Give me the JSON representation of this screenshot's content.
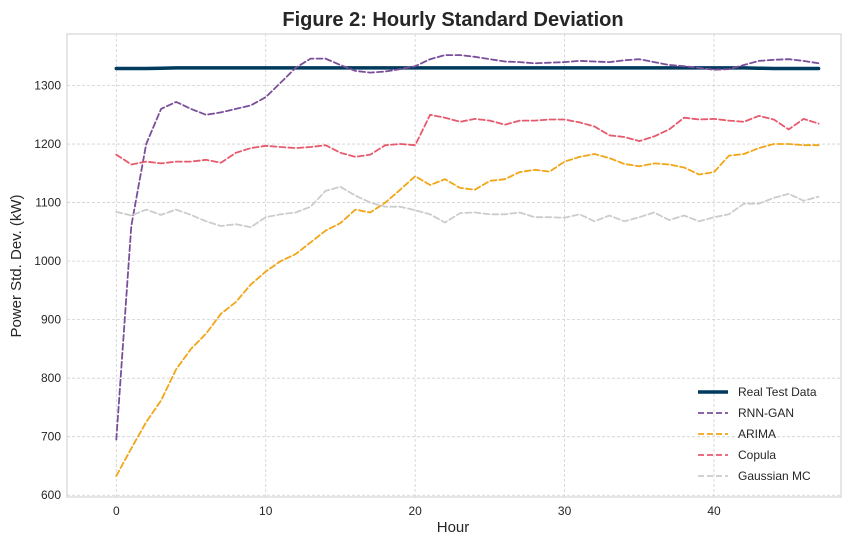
{
  "chart_data": {
    "type": "line",
    "title": "Figure 2: Hourly Standard Deviation",
    "xlabel": "Hour",
    "ylabel": "Power Std. Dev. (kW)",
    "xlim": [
      -3.3,
      48.5
    ],
    "ylim": [
      597,
      1388
    ],
    "xticks": [
      0,
      10,
      20,
      30,
      40
    ],
    "yticks": [
      600,
      700,
      800,
      900,
      1000,
      1100,
      1200,
      1300
    ],
    "grid": true,
    "legend_position": "lower-right",
    "x": [
      0,
      1,
      2,
      3,
      4,
      5,
      6,
      7,
      8,
      9,
      10,
      11,
      12,
      13,
      14,
      15,
      16,
      17,
      18,
      19,
      20,
      21,
      22,
      23,
      24,
      25,
      26,
      27,
      28,
      29,
      30,
      31,
      32,
      33,
      34,
      35,
      36,
      37,
      38,
      39,
      40,
      41,
      42,
      43,
      44,
      45,
      46,
      47
    ],
    "series": [
      {
        "name": "Real Test Data",
        "color": "#003a5c",
        "dash": "solid",
        "width": 3.5,
        "values": [
          1329,
          1329,
          1329,
          1329.5,
          1330,
          1330,
          1330,
          1330,
          1330,
          1330,
          1330,
          1330,
          1330,
          1330,
          1330,
          1330,
          1330,
          1330,
          1330,
          1330,
          1330,
          1330,
          1330,
          1330,
          1330,
          1330,
          1330,
          1330,
          1330,
          1330,
          1330,
          1330,
          1330,
          1330,
          1330,
          1330,
          1330,
          1330,
          1330,
          1330,
          1330,
          1330,
          1330,
          1329.5,
          1329,
          1329,
          1329,
          1329
        ]
      },
      {
        "name": "RNN-GAN",
        "color": "#7a4f9a",
        "dash": "dashed",
        "width": 1.8,
        "values": [
          695,
          1060,
          1200,
          1260,
          1272,
          1260,
          1250,
          1254,
          1260,
          1266,
          1280,
          1305,
          1330,
          1346,
          1346,
          1335,
          1325,
          1322,
          1324,
          1328,
          1333,
          1345,
          1352,
          1352,
          1349,
          1345,
          1341,
          1340,
          1338,
          1339,
          1340,
          1342,
          1341,
          1340,
          1343,
          1345,
          1340,
          1335,
          1333,
          1330,
          1327,
          1328,
          1335,
          1342,
          1344,
          1345,
          1342,
          1338
        ]
      },
      {
        "name": "ARIMA",
        "color": "#f2a516",
        "dash": "dashed",
        "width": 1.8,
        "values": [
          633,
          680,
          725,
          762,
          815,
          850,
          876,
          910,
          930,
          960,
          982,
          1000,
          1012,
          1032,
          1052,
          1065,
          1088,
          1083,
          1100,
          1122,
          1145,
          1130,
          1140,
          1125,
          1122,
          1137,
          1140,
          1152,
          1156,
          1153,
          1170,
          1178,
          1183,
          1176,
          1166,
          1162,
          1167,
          1165,
          1160,
          1148,
          1152,
          1180,
          1183,
          1193,
          1200,
          1200,
          1198,
          1198
        ]
      },
      {
        "name": "Copula",
        "color": "#e8596d",
        "dash": "dashed",
        "width": 1.8,
        "values": [
          1182,
          1165,
          1170,
          1167,
          1170,
          1170,
          1173,
          1168,
          1185,
          1193,
          1197,
          1195,
          1193,
          1195,
          1198,
          1185,
          1178,
          1182,
          1198,
          1200,
          1198,
          1250,
          1245,
          1238,
          1243,
          1240,
          1233,
          1240,
          1240,
          1242,
          1242,
          1237,
          1230,
          1215,
          1212,
          1205,
          1213,
          1225,
          1245,
          1242,
          1243,
          1240,
          1238,
          1248,
          1242,
          1225,
          1243,
          1235
        ]
      },
      {
        "name": "Gaussian MC",
        "color": "#cccccc",
        "dash": "dashed",
        "width": 1.8,
        "values": [
          1084,
          1078,
          1088,
          1079,
          1088,
          1079,
          1068,
          1060,
          1063,
          1058,
          1075,
          1080,
          1083,
          1093,
          1120,
          1127,
          1112,
          1100,
          1093,
          1093,
          1087,
          1080,
          1066,
          1082,
          1083,
          1080,
          1080,
          1083,
          1075,
          1075,
          1074,
          1080,
          1068,
          1078,
          1068,
          1075,
          1083,
          1070,
          1078,
          1068,
          1075,
          1080,
          1098,
          1098,
          1108,
          1115,
          1103,
          1110
        ]
      }
    ]
  }
}
